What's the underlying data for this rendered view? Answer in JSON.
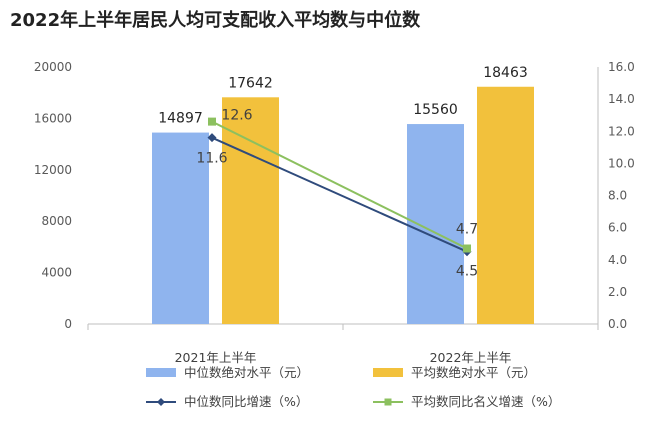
{
  "title": "2022年上半年居民人均可支配收入平均数与中位数",
  "chart_data": {
    "type": "bar",
    "categories": [
      "2021年上半年",
      "2022年上半年"
    ],
    "series": [
      {
        "name": "中位数绝对水平（元）",
        "kind": "bar",
        "axis": "left",
        "color": "#8fb4ee",
        "values": [
          14897,
          15560
        ]
      },
      {
        "name": "平均数绝对水平（元）",
        "kind": "bar",
        "axis": "left",
        "color": "#f2c13c",
        "values": [
          17642,
          18463
        ]
      },
      {
        "name": "中位数同比增速（%）",
        "kind": "line",
        "axis": "right",
        "color": "#2f4b7c",
        "marker": "diamond",
        "values": [
          11.6,
          4.5
        ]
      },
      {
        "name": "平均数同比名义增速（%）",
        "kind": "line",
        "axis": "right",
        "color": "#8cc05f",
        "marker": "square",
        "values": [
          12.6,
          4.7
        ]
      }
    ],
    "left_axis": {
      "ylim": [
        0,
        20000
      ],
      "ticks": [
        "0",
        "4000",
        "8000",
        "12000",
        "16000",
        "20000"
      ]
    },
    "right_axis": {
      "ylim": [
        0,
        16
      ],
      "ticks": [
        "0.0",
        "2.0",
        "4.0",
        "6.0",
        "8.0",
        "10.0",
        "12.0",
        "14.0",
        "16.0"
      ]
    },
    "grid": false,
    "legend": "bottom"
  }
}
